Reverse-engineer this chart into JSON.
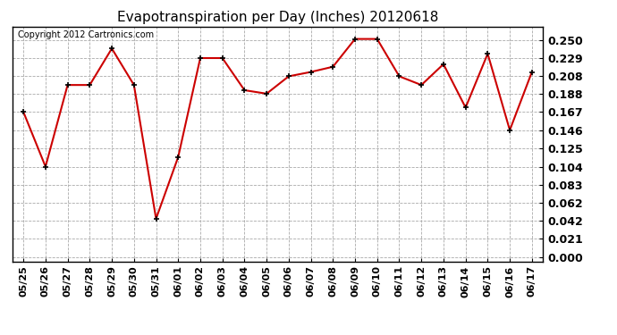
{
  "title": "Evapotranspiration per Day (Inches) 20120618",
  "copyright_text": "Copyright 2012 Cartronics.com",
  "dates": [
    "05/25",
    "05/26",
    "05/27",
    "05/28",
    "05/29",
    "05/30",
    "05/31",
    "06/01",
    "06/02",
    "06/03",
    "06/04",
    "06/05",
    "06/06",
    "06/07",
    "06/08",
    "06/09",
    "06/10",
    "06/11",
    "06/12",
    "06/13",
    "06/14",
    "06/15",
    "06/16",
    "06/17"
  ],
  "values": [
    0.167,
    0.104,
    0.198,
    0.198,
    0.24,
    0.198,
    0.044,
    0.115,
    0.229,
    0.229,
    0.192,
    0.188,
    0.208,
    0.213,
    0.219,
    0.251,
    0.251,
    0.208,
    0.198,
    0.222,
    0.172,
    0.234,
    0.146,
    0.213
  ],
  "line_color": "#cc0000",
  "marker": "+",
  "marker_size": 5,
  "marker_color": "#000000",
  "bg_color": "#ffffff",
  "grid_color": "#aaaaaa",
  "yticks": [
    0.0,
    0.021,
    0.042,
    0.062,
    0.083,
    0.104,
    0.125,
    0.146,
    0.167,
    0.188,
    0.208,
    0.229,
    0.25
  ],
  "ylim": [
    -0.005,
    0.265
  ],
  "title_fontsize": 11,
  "copyright_fontsize": 7,
  "ytick_fontsize": 9,
  "xtick_fontsize": 8
}
